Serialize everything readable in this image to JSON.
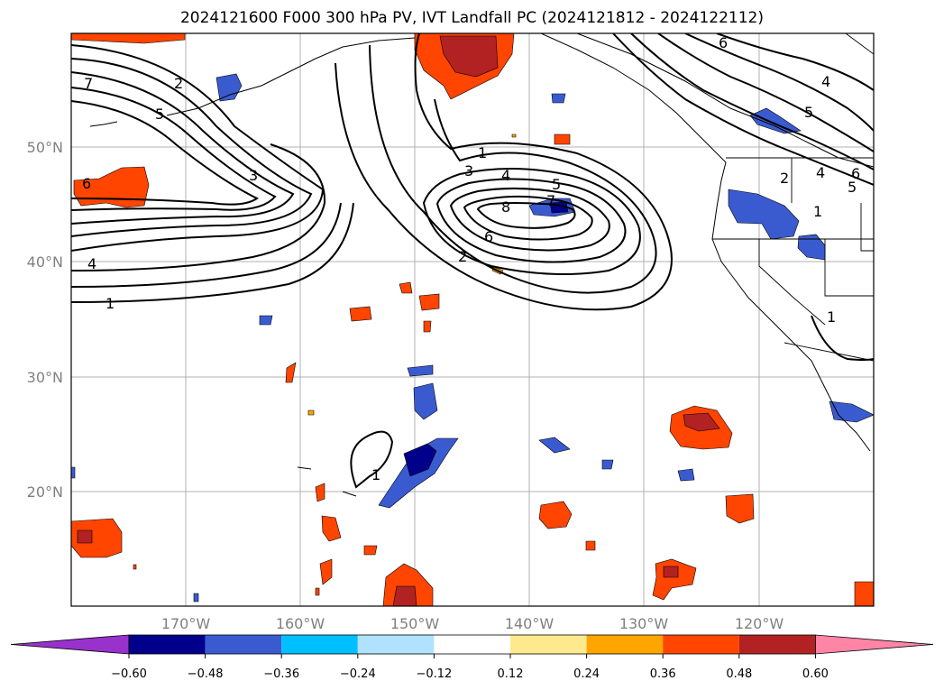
{
  "title": "2024121600 F000 300 hPa PV, IVT Landfall PC (2024121812 - 2024122112)",
  "longitude_labels": [
    "170°W",
    "160°W",
    "150°W",
    "140°W",
    "130°W",
    "120°W"
  ],
  "latitude_labels": [
    "50°N",
    "40°N",
    "30°N",
    "20°N"
  ],
  "colorbar": {
    "ticks": [
      "−0.60",
      "−0.48",
      "−0.36",
      "−0.24",
      "−0.12",
      "0.12",
      "0.24",
      "0.36",
      "0.48",
      "0.60"
    ],
    "colors": [
      "#9932cc",
      "#00008b",
      "#3a5bd0",
      "#00bfff",
      "#b0e2ff",
      "#ffffff",
      "#ffe98f",
      "#ffa500",
      "#ff4500",
      "#b22222",
      "#ff85a7"
    ]
  },
  "contour_labels": [
    "1",
    "2",
    "3",
    "4",
    "5",
    "6",
    "7",
    "8",
    "1",
    "2",
    "3",
    "4",
    "5",
    "6",
    "7",
    "1",
    "4",
    "5",
    "6",
    "1",
    "2",
    "4",
    "5",
    "6",
    "1"
  ],
  "colors": {
    "positive_core": "#b22222",
    "positive": "#ff4500",
    "positive_edge": "#ffa500",
    "negative_core": "#00008b",
    "negative": "#3a5bd0",
    "negative_edge": "#00bfff"
  }
}
